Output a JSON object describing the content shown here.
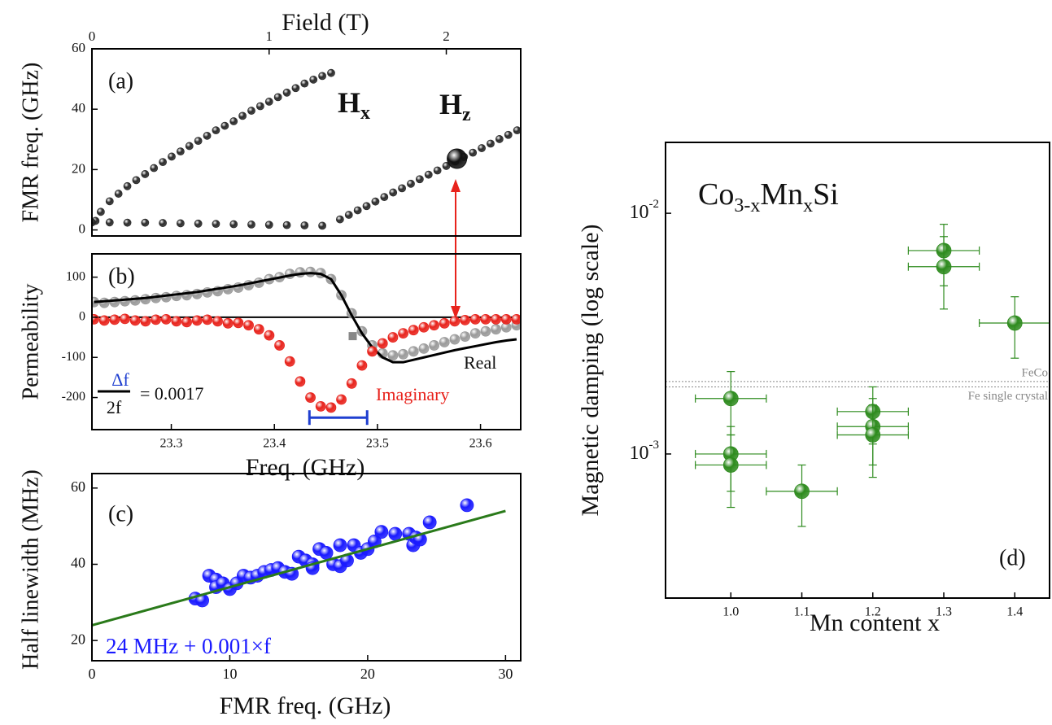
{
  "chart_data": [
    {
      "type": "scatter",
      "xlabel": "Field (T)",
      "ylabel": "FMR freq. (GHz)",
      "xaxis_position": "top",
      "xlim": [
        0,
        2.42
      ],
      "xticks": [
        0,
        1,
        2
      ],
      "ylim": [
        -2,
        60
      ],
      "yticks": [
        0,
        20,
        40,
        60
      ],
      "annotations": [
        "(a)",
        [
          "H",
          "x"
        ],
        [
          "H",
          "z"
        ]
      ],
      "series": [
        {
          "style": "spheres",
          "color": "#2a2a2a",
          "x": [
            0.02,
            0.05,
            0.1,
            0.15,
            0.2,
            0.25,
            0.3,
            0.35,
            0.4,
            0.45,
            0.5,
            0.55,
            0.6,
            0.65,
            0.7,
            0.75,
            0.8,
            0.85,
            0.9,
            0.95,
            1.0,
            1.05,
            1.1,
            1.15,
            1.2,
            1.25,
            1.3,
            1.35
          ],
          "values": [
            3,
            6,
            9.5,
            12,
            14.5,
            16.5,
            18.5,
            20.5,
            22.5,
            24.3,
            26,
            27.8,
            29.5,
            31.2,
            33,
            34.5,
            36,
            37.8,
            39.5,
            41,
            42.5,
            44,
            45.5,
            47,
            48.5,
            49.8,
            51,
            52
          ]
        },
        {
          "style": "spheres",
          "color": "#2a2a2a",
          "x": [
            0,
            0.1,
            0.2,
            0.3,
            0.4,
            0.5,
            0.6,
            0.7,
            0.8,
            0.9,
            1.0,
            1.1,
            1.2,
            1.3,
            1.4,
            1.45,
            1.5,
            1.55,
            1.6,
            1.65,
            1.7,
            1.75,
            1.8,
            1.85,
            1.9,
            1.95,
            2.0,
            2.05,
            2.1,
            2.15,
            2.2,
            2.25,
            2.3,
            2.35,
            2.4
          ],
          "values": [
            2.5,
            2.5,
            2.4,
            2.4,
            2.3,
            2.2,
            2.1,
            2.0,
            1.9,
            1.8,
            1.7,
            1.6,
            1.5,
            1.4,
            3.5,
            5.0,
            6.5,
            7.9,
            9.4,
            10.9,
            12.4,
            13.8,
            15.3,
            16.8,
            18.3,
            19.7,
            21.2,
            22.7,
            24.2,
            25.6,
            27.1,
            28.6,
            30.1,
            31.5,
            33
          ]
        }
      ],
      "highlight": {
        "x": 2.06,
        "y": 23.6,
        "color": "#111111"
      }
    },
    {
      "type": "scatter",
      "xlabel": "Freq. (GHz)",
      "ylabel": "Permeability",
      "xaxis_position": "bottom",
      "xlim": [
        23.223,
        23.639
      ],
      "xticks": [
        23.3,
        23.4,
        23.5,
        23.6
      ],
      "ylim": [
        -280,
        158
      ],
      "yticks": [
        -200,
        -100,
        0,
        100
      ],
      "zero_line": true,
      "annotations": [
        "(b)",
        "Real",
        "Imaginary",
        {
          "numerator": "Δf",
          "denominator": "2f",
          "text": "= 0.0017"
        }
      ],
      "x": [
        23.225,
        23.235,
        23.245,
        23.255,
        23.265,
        23.275,
        23.285,
        23.295,
        23.305,
        23.315,
        23.325,
        23.335,
        23.345,
        23.355,
        23.365,
        23.375,
        23.385,
        23.395,
        23.405,
        23.415,
        23.425,
        23.435,
        23.445,
        23.455,
        23.465,
        23.475,
        23.485,
        23.495,
        23.505,
        23.515,
        23.525,
        23.535,
        23.545,
        23.555,
        23.565,
        23.575,
        23.585,
        23.595,
        23.605,
        23.615,
        23.625,
        23.635
      ],
      "series": [
        {
          "style": "spheres",
          "color": "#9a9a9a",
          "values": [
            38,
            36,
            38,
            40,
            42,
            45,
            48,
            50,
            53,
            55,
            58,
            62,
            65,
            70,
            74,
            80,
            86,
            95,
            100,
            108,
            112,
            113,
            110,
            95,
            55,
            10,
            -35,
            -70,
            -90,
            -95,
            -92,
            -85,
            -78,
            -70,
            -62,
            -55,
            -48,
            -40,
            -35,
            -30,
            -25,
            -20
          ]
        },
        {
          "style": "line",
          "color": "#000000",
          "values": [
            38,
            40,
            42,
            44,
            46,
            48,
            51,
            54,
            57,
            60,
            63,
            67,
            71,
            75,
            79,
            84,
            89,
            94,
            99,
            104,
            108,
            110,
            108,
            95,
            55,
            5,
            -40,
            -75,
            -100,
            -112,
            -112,
            -106,
            -100,
            -94,
            -88,
            -82,
            -77,
            -72,
            -67,
            -62,
            -58,
            -55
          ]
        },
        {
          "style": "spheres",
          "color": "#e8231c",
          "values": [
            -5,
            -8,
            -6,
            -4,
            -8,
            -10,
            -6,
            -5,
            -10,
            -12,
            -8,
            -6,
            -10,
            -15,
            -14,
            -20,
            -30,
            -45,
            -70,
            -110,
            -160,
            -200,
            -222,
            -225,
            -205,
            -165,
            -120,
            -85,
            -65,
            -50,
            -40,
            -32,
            -25,
            -20,
            -15,
            -10,
            -7,
            -5,
            -5,
            -5,
            -5,
            -5
          ]
        },
        {
          "style": "square",
          "color": "#888888",
          "x": [
            23.476
          ],
          "values": [
            -47
          ]
        }
      ],
      "linewidth_bar": {
        "x": [
          23.434,
          23.49
        ],
        "y": -250,
        "color": "#1f3fd0"
      }
    },
    {
      "type": "scatter",
      "xlabel": "FMR freq. (GHz)",
      "ylabel": "Half linewidth (MHz)",
      "xaxis_position": "bottom",
      "xlim": [
        0,
        31.1
      ],
      "xticks": [
        0,
        10,
        20,
        30
      ],
      "ylim": [
        14.7,
        63.8
      ],
      "yticks": [
        20,
        40,
        60
      ],
      "annotations": [
        "(c)",
        "24 MHz + 0.001×f"
      ],
      "series": [
        {
          "style": "spheres",
          "color": "#1a1aff",
          "x": [
            7.5,
            8,
            8.5,
            9,
            9,
            9.5,
            10,
            10.5,
            11,
            11.5,
            12,
            12.5,
            13,
            13.5,
            14,
            14.5,
            15,
            15.5,
            16,
            16,
            16.5,
            17,
            17.5,
            18,
            18,
            18.5,
            19,
            19.5,
            20,
            20.5,
            21,
            22,
            23,
            23.3,
            23.5,
            23.8,
            24.5,
            27.2
          ],
          "values": [
            31,
            30.5,
            37,
            36,
            34,
            35,
            33.5,
            35,
            37,
            36.5,
            37,
            38,
            38.5,
            39,
            38,
            37.5,
            42,
            41,
            40,
            39,
            44,
            43,
            40,
            39.5,
            45,
            41,
            45,
            43,
            44,
            46,
            48.5,
            48,
            48,
            45,
            47,
            46.5,
            51,
            55.5
          ]
        },
        {
          "style": "line",
          "color": "#2a7a1a",
          "x": [
            0,
            30
          ],
          "values": [
            24,
            54
          ]
        }
      ]
    },
    {
      "type": "scatter",
      "xlabel": "Mn content x",
      "ylabel": "Magnetic damping (log scale)",
      "xaxis_position": "bottom",
      "yscale": "log",
      "xlim": [
        0.908,
        1.449
      ],
      "xticks": [
        {
          "value": 1,
          "label": "1.0"
        },
        {
          "value": 1.1,
          "label": "1.1"
        },
        {
          "value": 1.2,
          "label": "1.2"
        },
        {
          "value": 1.3,
          "label": "1.3"
        },
        {
          "value": 1.4,
          "label": "1.4"
        }
      ],
      "ylim": [
        0.000252,
        0.0197
      ],
      "yticks": [
        {
          "value": 0.001,
          "label": [
            "10",
            "-3"
          ]
        },
        {
          "value": 0.01,
          "label": [
            "10",
            "-2"
          ]
        }
      ],
      "annotations": [
        "(d)",
        [
          "Co",
          "3-x",
          "Mn",
          "x",
          "Si"
        ]
      ],
      "series": [
        {
          "style": "spheres",
          "color": "#2e8b1e",
          "x": [
            1.0,
            1.0,
            1.0,
            1.1,
            1.2,
            1.2,
            1.2,
            1.3,
            1.3,
            1.4
          ],
          "values": [
            0.0017,
            0.001,
            0.0009,
            0.0007,
            0.0015,
            0.0013,
            0.0012,
            0.007,
            0.006,
            0.0035
          ],
          "xerr": [
            0.05,
            0.05,
            0.05,
            0.05,
            0.05,
            0.05,
            0.05,
            0.05,
            0.05,
            0.05
          ],
          "yerr": [
            0.0005,
            0.0003,
            0.0003,
            0.0002,
            0.0004,
            0.0004,
            0.0004,
            0.002,
            0.002,
            0.001
          ]
        }
      ],
      "reference_lines": [
        {
          "label": "FeCo",
          "value": 0.002,
          "color": "#888888"
        },
        {
          "label": "Fe single crystal",
          "value": 0.0019,
          "color": "#888888"
        }
      ]
    }
  ]
}
